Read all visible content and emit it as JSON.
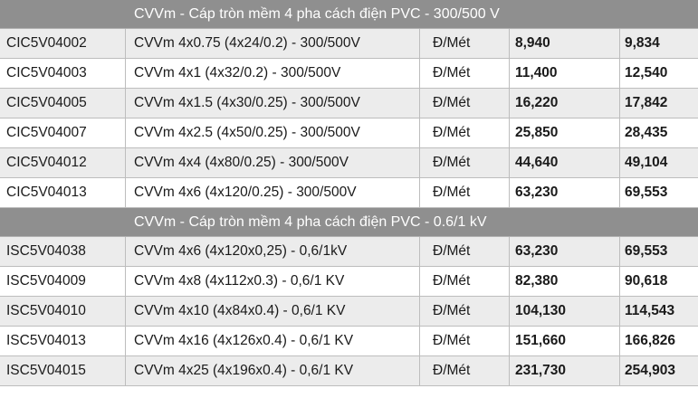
{
  "sections": [
    {
      "title": "CVVm  -  Cáp tròn mềm 4 pha cách điện PVC  -  300/500 V",
      "rows": [
        {
          "code": "CIC5V04002",
          "name": "CVVm 4x0.75 (4x24/0.2) - 300/500V",
          "unit": "Đ/Mét",
          "price1": "8,940",
          "price2": "9,834"
        },
        {
          "code": "CIC5V04003",
          "name": "CVVm 4x1 (4x32/0.2) - 300/500V",
          "unit": "Đ/Mét",
          "price1": "11,400",
          "price2": "12,540"
        },
        {
          "code": "CIC5V04005",
          "name": "CVVm 4x1.5 (4x30/0.25) - 300/500V",
          "unit": "Đ/Mét",
          "price1": "16,220",
          "price2": "17,842"
        },
        {
          "code": "CIC5V04007",
          "name": "CVVm 4x2.5 (4x50/0.25) - 300/500V",
          "unit": "Đ/Mét",
          "price1": "25,850",
          "price2": "28,435"
        },
        {
          "code": "CIC5V04012",
          "name": "CVVm 4x4 (4x80/0.25) - 300/500V",
          "unit": "Đ/Mét",
          "price1": "44,640",
          "price2": "49,104"
        },
        {
          "code": "CIC5V04013",
          "name": "CVVm 4x6  (4x120/0.25) - 300/500V",
          "unit": "Đ/Mét",
          "price1": "63,230",
          "price2": "69,553"
        }
      ]
    },
    {
      "title": "CVVm  -  Cáp tròn mềm 4 pha cách điện PVC  -  0.6/1 kV",
      "rows": [
        {
          "code": "ISC5V04038",
          "name": "CVVm  4x6 (4x120x0,25) - 0,6/1kV",
          "unit": "Đ/Mét",
          "price1": "63,230",
          "price2": "69,553"
        },
        {
          "code": "ISC5V04009",
          "name": "CVVm 4x8 (4x112x0.3) - 0,6/1 KV",
          "unit": "Đ/Mét",
          "price1": "82,380",
          "price2": "90,618"
        },
        {
          "code": "ISC5V04010",
          "name": "CVVm 4x10 (4x84x0.4) - 0,6/1 KV",
          "unit": "Đ/Mét",
          "price1": "104,130",
          "price2": "114,543"
        },
        {
          "code": "ISC5V04013",
          "name": "CVVm 4x16 (4x126x0.4) - 0,6/1 KV",
          "unit": "Đ/Mét",
          "price1": "151,660",
          "price2": "166,826"
        },
        {
          "code": "ISC5V04015",
          "name": "CVVm 4x25 (4x196x0.4) - 0,6/1 KV",
          "unit": "Đ/Mét",
          "price1": "231,730",
          "price2": "254,903"
        }
      ]
    }
  ]
}
